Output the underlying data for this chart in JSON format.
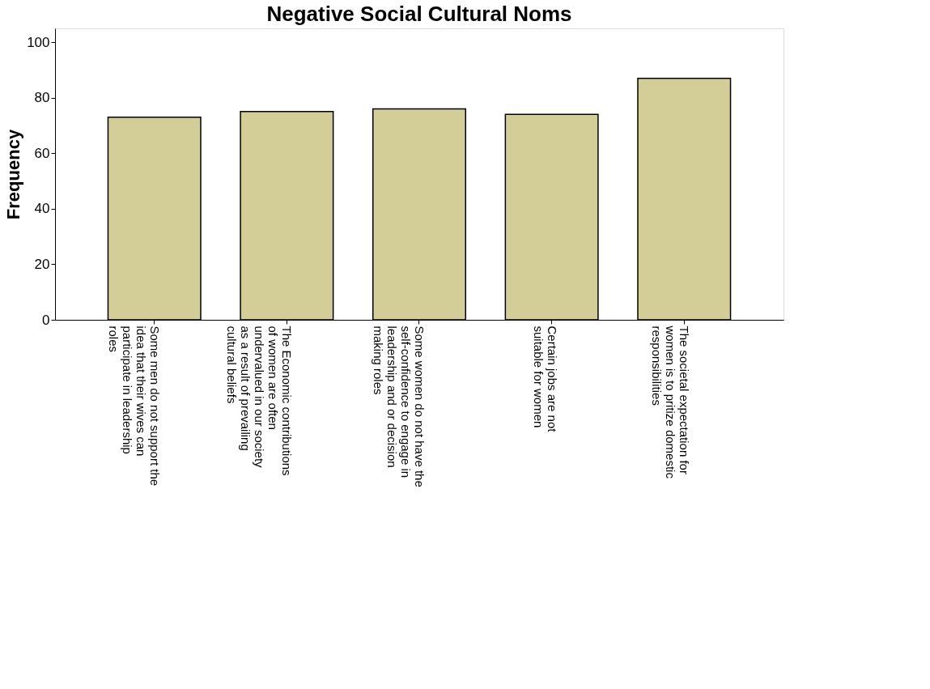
{
  "chart_data": {
    "type": "bar",
    "title": "Negative Social Cultural Noms",
    "ylabel": "Frequency",
    "categories": [
      "Some men do not support the idea that their wives can participate in leadership roles",
      "The Economic contributions of women are often undervalued in our society as a result of prevailing cultural beliefs",
      "Some women do not have the self-confidence to engage in leadership and or decision making roles",
      "Certain jobs are not suitable for women",
      "The societal expectation for women is to pritize domestic responsibilities"
    ],
    "values": [
      73,
      75,
      76,
      74,
      87
    ],
    "color": "#d3ce97",
    "ylim": [
      0,
      105
    ],
    "yticks": [
      0,
      20,
      40,
      60,
      80,
      100
    ],
    "grid": false
  }
}
